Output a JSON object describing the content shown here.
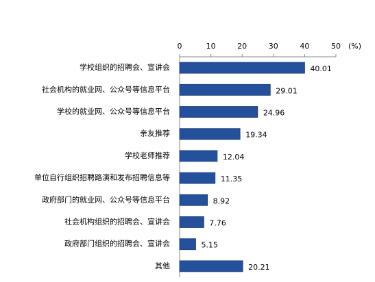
{
  "chart_data": {
    "type": "bar",
    "orientation": "horizontal",
    "xlabel": "(%)",
    "categories": [
      "学校组织的招聘会、宣讲会",
      "社会机构的就业网、公众号等信息平台",
      "学校的就业网、公众号等信息平台",
      "亲友推荐",
      "学校老师推荐",
      "单位自行组织招聘路演和发布招聘信息等",
      "政府部门的就业网、公众号等信息平台",
      "社会机构组织的招聘会、宣讲会",
      "政府部门组织的招聘会、宣讲会",
      "其他"
    ],
    "values": [
      40.01,
      29.01,
      24.96,
      19.34,
      12.04,
      11.35,
      8.92,
      7.76,
      5.15,
      20.21
    ],
    "color": "#24509c",
    "xlim": [
      0,
      50
    ],
    "xticks": [
      0,
      10,
      20,
      30,
      40,
      50
    ],
    "grid": false
  }
}
